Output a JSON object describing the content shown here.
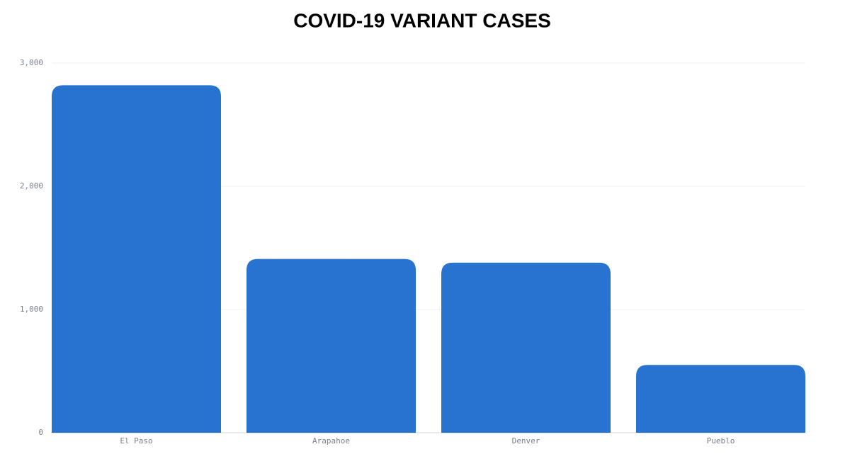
{
  "chart_data": {
    "type": "bar",
    "title": "COVID-19 VARIANT CASES",
    "categories": [
      "El Paso",
      "Arapahoe",
      "Denver",
      "Pueblo"
    ],
    "values": [
      2820,
      1410,
      1380,
      550
    ],
    "color": "#2872d0",
    "ylim": [
      0,
      3000
    ],
    "yticks": [
      0,
      {
        "value": 1000,
        "label": "1,000"
      },
      {
        "value": 2000,
        "label": "2,000"
      },
      {
        "value": 3000,
        "label": "3,000"
      }
    ],
    "grid": true
  }
}
